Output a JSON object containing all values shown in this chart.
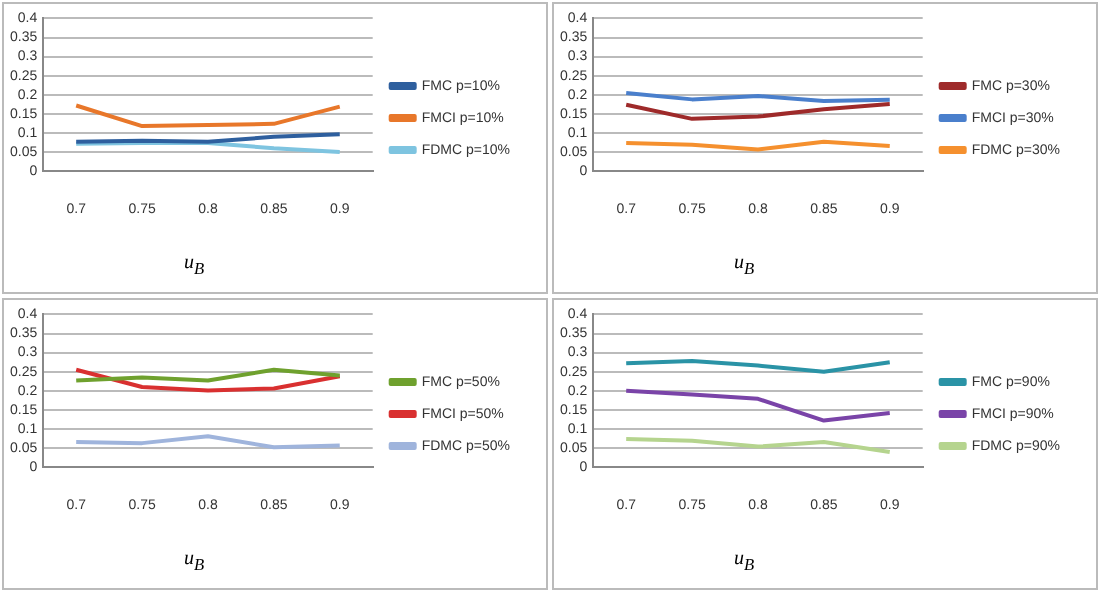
{
  "chart_data": [
    {
      "type": "line",
      "xlabel": "u$_{B}$",
      "categories": [
        "0.7",
        "0.75",
        "0.8",
        "0.85",
        "0.9"
      ],
      "ylim": [
        0,
        0.4
      ],
      "yticks": [
        0,
        0.05,
        0.1,
        0.15,
        0.2,
        0.25,
        0.3,
        0.35,
        0.4
      ],
      "grid": "y",
      "legend": "right",
      "marker": "none",
      "series": [
        {
          "name": "FMC p=10%",
          "color": "#2e5f9e",
          "values": [
            0.077,
            0.08,
            0.077,
            0.09,
            0.097
          ]
        },
        {
          "name": "FMCI p=10%",
          "color": "#e8772a",
          "values": [
            0.172,
            0.118,
            0.121,
            0.124,
            0.169
          ]
        },
        {
          "name": "FDMC p=10%",
          "color": "#7ec4e0",
          "values": [
            0.072,
            0.074,
            0.074,
            0.06,
            0.05
          ]
        }
      ]
    },
    {
      "type": "line",
      "xlabel": "u$_{B}$",
      "categories": [
        "0.7",
        "0.75",
        "0.8",
        "0.85",
        "0.9"
      ],
      "ylim": [
        0,
        0.4
      ],
      "yticks": [
        0,
        0.05,
        0.1,
        0.15,
        0.2,
        0.25,
        0.3,
        0.35,
        0.4
      ],
      "grid": "y",
      "legend": "right",
      "marker": "none",
      "series": [
        {
          "name": "FMC p=30%",
          "color": "#9e2a2a",
          "values": [
            0.174,
            0.137,
            0.143,
            0.162,
            0.176
          ]
        },
        {
          "name": "FMCI p=30%",
          "color": "#4a7fcc",
          "values": [
            0.205,
            0.188,
            0.197,
            0.184,
            0.187
          ]
        },
        {
          "name": "FDMC p=30%",
          "color": "#f5902e",
          "values": [
            0.074,
            0.069,
            0.057,
            0.077,
            0.066
          ]
        }
      ]
    },
    {
      "type": "line",
      "xlabel": "u$_{B}$",
      "categories": [
        "0.7",
        "0.75",
        "0.8",
        "0.85",
        "0.9"
      ],
      "ylim": [
        0,
        0.4
      ],
      "yticks": [
        0,
        0.05,
        0.1,
        0.15,
        0.2,
        0.25,
        0.3,
        0.35,
        0.4
      ],
      "grid": "y",
      "legend": "right",
      "marker": "none",
      "series": [
        {
          "name": "FMC p=50%",
          "color": "#6fa12e",
          "values": [
            0.227,
            0.235,
            0.227,
            0.255,
            0.24
          ]
        },
        {
          "name": "FMCI p=50%",
          "color": "#d93030",
          "values": [
            0.255,
            0.21,
            0.201,
            0.206,
            0.238
          ]
        },
        {
          "name": "FDMC p=50%",
          "color": "#9fb4dc",
          "values": [
            0.066,
            0.063,
            0.081,
            0.052,
            0.057
          ]
        }
      ]
    },
    {
      "type": "line",
      "xlabel": "u$_{B}$",
      "categories": [
        "0.7",
        "0.75",
        "0.8",
        "0.85",
        "0.9"
      ],
      "ylim": [
        0,
        0.4
      ],
      "yticks": [
        0,
        0.05,
        0.1,
        0.15,
        0.2,
        0.25,
        0.3,
        0.35,
        0.4
      ],
      "grid": "y",
      "legend": "right",
      "marker": "none",
      "series": [
        {
          "name": "FMC p=90%",
          "color": "#2a93a6",
          "values": [
            0.272,
            0.278,
            0.266,
            0.25,
            0.275
          ]
        },
        {
          "name": "FMCI p=90%",
          "color": "#7a44a8",
          "values": [
            0.2,
            0.19,
            0.179,
            0.122,
            0.142
          ]
        },
        {
          "name": "FDMC p=90%",
          "color": "#b5d48e",
          "values": [
            0.074,
            0.069,
            0.054,
            0.066,
            0.04
          ]
        }
      ]
    }
  ]
}
